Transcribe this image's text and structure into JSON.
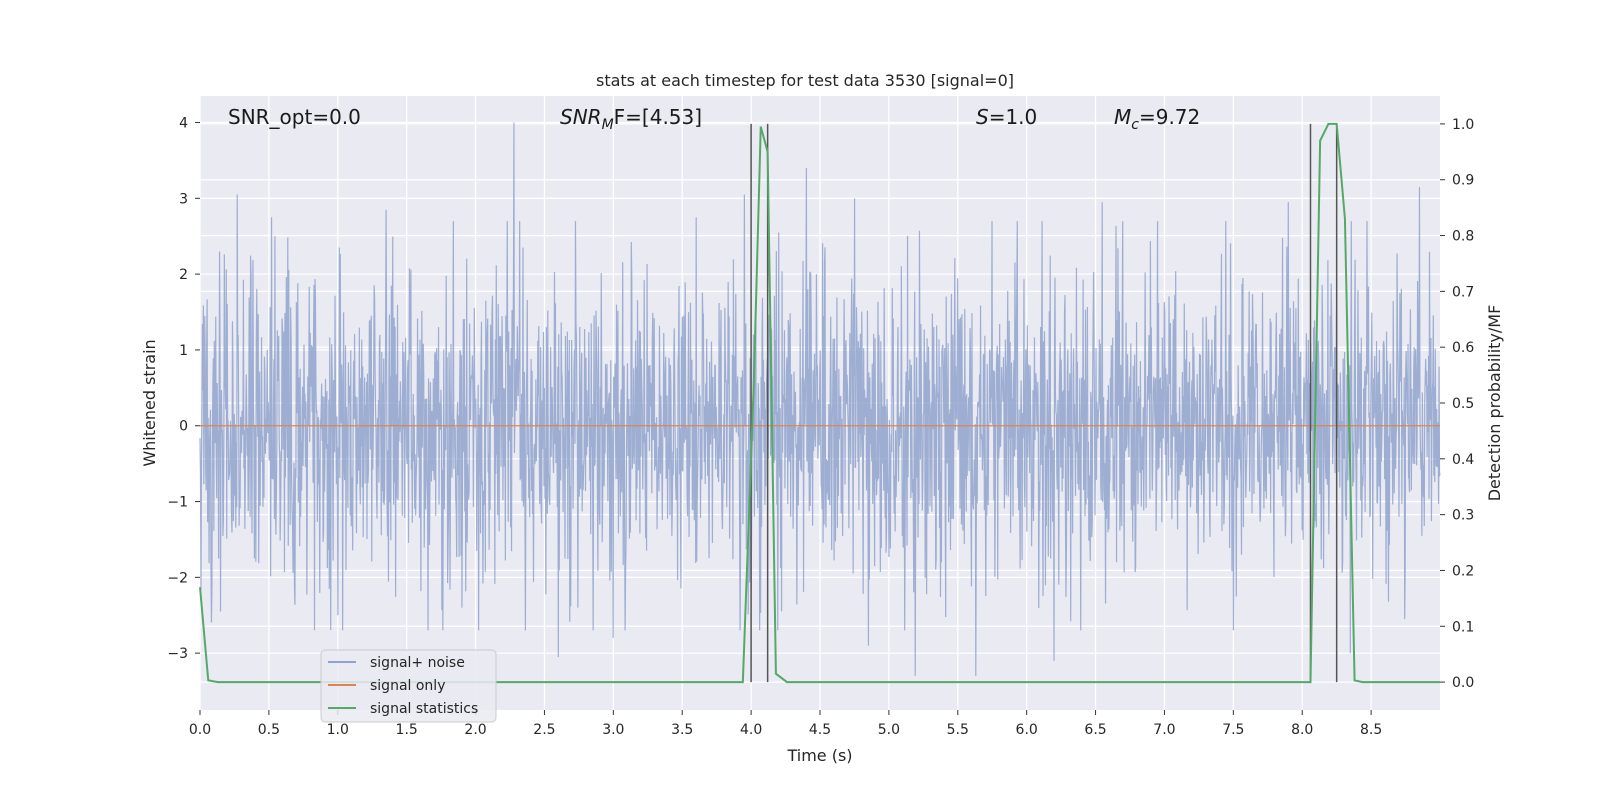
{
  "chart_data": {
    "type": "line",
    "title": "stats at each timestep for test data 3530 [signal=0]",
    "xlabel": "Time (s)",
    "ylabel_left": "Whitened strain",
    "ylabel_right": "Detection probability/MF",
    "xlim": [
      0.0,
      9.0
    ],
    "ylim_left": [
      -3.75,
      4.35
    ],
    "ylim_right": [
      -0.05,
      1.05
    ],
    "xticks": [
      "0.0",
      "0.5",
      "1.0",
      "1.5",
      "2.0",
      "2.5",
      "3.0",
      "3.5",
      "4.0",
      "4.5",
      "5.0",
      "5.5",
      "6.0",
      "6.5",
      "7.0",
      "7.5",
      "8.0",
      "8.5"
    ],
    "yticks_left": [
      "−3",
      "−2",
      "−1",
      "0",
      "1",
      "2",
      "3",
      "4"
    ],
    "yticks_right": [
      "0.0",
      "0.1",
      "0.2",
      "0.3",
      "0.4",
      "0.5",
      "0.6",
      "0.7",
      "0.8",
      "0.9",
      "1.0"
    ],
    "grid": true,
    "legend_position": "lower-left",
    "annotations": {
      "snr_opt": "SNR_opt=0.0",
      "snr_mf_base": "SNR",
      "snr_mf_sub": "M",
      "snr_mf_rest": "F=[4.53]",
      "s_var": "S",
      "s_rest": "=1.0",
      "mc_var": "M",
      "mc_sub": "c",
      "mc_rest": "=9.72"
    },
    "series": [
      {
        "name": "signal+ noise",
        "color": "#8fa3cc",
        "description_level": "noise band approx ±1.5, spikes to ±3",
        "sigma": 0.95,
        "spikes": [
          {
            "x": 0.27,
            "y": 3.05
          },
          {
            "x": 0.52,
            "y": 2.75
          },
          {
            "x": 1.35,
            "y": 2.85
          },
          {
            "x": 2.28,
            "y": 4.0
          },
          {
            "x": 2.6,
            "y": -3.05
          },
          {
            "x": 3.0,
            "y": -2.8
          },
          {
            "x": 3.6,
            "y": 2.75
          },
          {
            "x": 3.95,
            "y": 3.05
          },
          {
            "x": 4.2,
            "y": 2.55
          },
          {
            "x": 4.4,
            "y": 3.4
          },
          {
            "x": 4.75,
            "y": 3.0
          },
          {
            "x": 5.19,
            "y": -3.3
          },
          {
            "x": 5.63,
            "y": -3.3
          },
          {
            "x": 6.2,
            "y": 3.05
          },
          {
            "x": 6.2,
            "y": -3.1
          },
          {
            "x": 6.55,
            "y": 2.95
          },
          {
            "x": 7.9,
            "y": 2.95
          },
          {
            "x": 8.35,
            "y": -3.0
          },
          {
            "x": 8.85,
            "y": 3.15
          },
          {
            "x": 0.15,
            "y": -2.45
          },
          {
            "x": 1.0,
            "y": -2.5
          },
          {
            "x": 1.9,
            "y": -2.4
          },
          {
            "x": 4.85,
            "y": -2.9
          },
          {
            "x": 7.5,
            "y": -2.7
          }
        ]
      },
      {
        "name": "signal only",
        "color": "#dd8452",
        "x": [
          0.0,
          9.0
        ],
        "y": [
          0.0,
          0.0
        ]
      },
      {
        "name": "signal statistics",
        "color": "#55a868",
        "axis": "right",
        "x": [
          0.0,
          0.06,
          0.13,
          3.94,
          4.02,
          4.07,
          4.12,
          4.18,
          4.26,
          8.06,
          8.13,
          8.19,
          8.25,
          8.31,
          8.38,
          8.44,
          9.0
        ],
        "y": [
          0.17,
          0.003,
          0.0,
          0.0,
          0.54,
          0.995,
          0.95,
          0.015,
          0.0,
          0.0,
          0.97,
          1.0,
          1.0,
          0.83,
          0.003,
          0.0,
          0.0
        ]
      }
    ],
    "vlines": [
      {
        "x": 4.0,
        "y_range": [
          0.0,
          1.0
        ],
        "color": "#555555"
      },
      {
        "x": 4.12,
        "y_range": [
          0.0,
          1.0
        ],
        "color": "#555555"
      },
      {
        "x": 8.06,
        "y_range": [
          0.0,
          1.0
        ],
        "color": "#555555"
      },
      {
        "x": 8.25,
        "y_range": [
          0.0,
          1.0
        ],
        "color": "#555555"
      }
    ]
  }
}
